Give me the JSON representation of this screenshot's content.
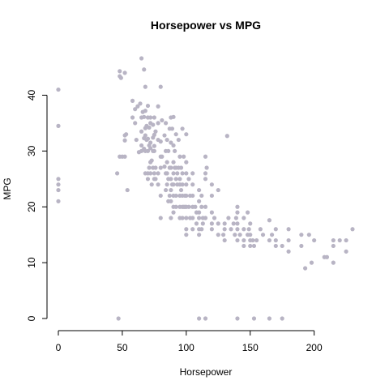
{
  "chart_data": {
    "type": "scatter",
    "title": "Horsepower vs MPG",
    "xlabel": "Horsepower",
    "ylabel": "MPG",
    "xlim": [
      0,
      230
    ],
    "ylim": [
      0,
      46.6
    ],
    "x_ticks": [
      0,
      50,
      100,
      150,
      200
    ],
    "y_ticks": [
      0,
      10,
      20,
      30,
      40
    ],
    "point_color": "#b8b4c4",
    "grid": false,
    "points": [
      [
        0,
        41
      ],
      [
        0,
        34.5
      ],
      [
        0,
        25
      ],
      [
        0,
        24
      ],
      [
        0,
        23
      ],
      [
        0,
        21
      ],
      [
        46,
        26
      ],
      [
        48,
        43.4
      ],
      [
        48,
        44.3
      ],
      [
        49,
        43.1
      ],
      [
        52,
        44
      ],
      [
        52,
        32.8
      ],
      [
        52,
        31.9
      ],
      [
        53,
        33
      ],
      [
        54,
        23
      ],
      [
        48,
        29
      ],
      [
        50,
        29
      ],
      [
        52,
        29
      ],
      [
        47,
        0
      ],
      [
        58,
        36
      ],
      [
        58,
        39
      ],
      [
        60,
        37.5
      ],
      [
        60,
        35
      ],
      [
        61,
        32
      ],
      [
        62,
        38
      ],
      [
        63,
        29.8
      ],
      [
        64,
        38.5
      ],
      [
        65,
        46.6
      ],
      [
        65,
        36
      ],
      [
        65,
        33.5
      ],
      [
        65,
        31
      ],
      [
        65,
        30
      ],
      [
        66,
        37
      ],
      [
        67,
        44.6
      ],
      [
        67,
        36.1
      ],
      [
        67,
        32.3
      ],
      [
        67,
        30.4
      ],
      [
        68,
        41.5
      ],
      [
        68,
        37.2
      ],
      [
        68,
        34.1
      ],
      [
        68,
        32.8
      ],
      [
        68,
        30
      ],
      [
        68,
        26
      ],
      [
        69,
        34.5
      ],
      [
        69,
        32
      ],
      [
        70,
        38.1
      ],
      [
        70,
        36
      ],
      [
        70,
        32.2
      ],
      [
        70,
        30
      ],
      [
        70,
        26
      ],
      [
        70,
        25
      ],
      [
        71,
        34.2
      ],
      [
        71,
        31
      ],
      [
        71,
        27
      ],
      [
        72,
        36
      ],
      [
        72,
        35
      ],
      [
        72,
        31.5
      ],
      [
        72,
        30.5
      ],
      [
        72,
        28
      ],
      [
        72,
        26
      ],
      [
        73,
        28.3
      ],
      [
        73,
        24
      ],
      [
        74,
        34.7
      ],
      [
        74,
        32.4
      ],
      [
        74,
        30
      ],
      [
        74,
        27
      ],
      [
        75,
        32.9
      ],
      [
        75,
        36
      ],
      [
        75,
        30.9
      ],
      [
        75,
        26
      ],
      [
        75,
        25
      ],
      [
        75,
        30
      ],
      [
        76,
        33.5
      ],
      [
        76,
        27
      ],
      [
        76,
        25
      ],
      [
        78,
        38
      ],
      [
        78,
        32
      ],
      [
        78,
        35
      ],
      [
        78,
        26
      ],
      [
        78,
        24
      ],
      [
        80,
        41.5
      ],
      [
        80,
        31.7
      ],
      [
        80,
        29
      ],
      [
        80,
        27
      ],
      [
        80,
        22
      ],
      [
        80,
        18
      ],
      [
        81,
        35.5
      ],
      [
        81,
        29
      ],
      [
        83,
        32.8
      ],
      [
        83,
        27.2
      ],
      [
        84,
        35
      ],
      [
        84,
        30
      ],
      [
        84,
        26
      ],
      [
        84,
        23
      ],
      [
        85,
        32
      ],
      [
        85,
        28
      ],
      [
        85,
        26
      ],
      [
        85,
        24
      ],
      [
        86,
        30
      ],
      [
        86,
        25
      ],
      [
        86,
        21
      ],
      [
        87,
        34
      ],
      [
        87,
        27
      ],
      [
        87,
        22
      ],
      [
        88,
        36
      ],
      [
        88,
        31.5
      ],
      [
        88,
        27
      ],
      [
        88,
        25
      ],
      [
        88,
        23
      ],
      [
        88,
        21
      ],
      [
        88,
        18
      ],
      [
        89,
        34
      ],
      [
        89,
        24
      ],
      [
        90,
        36.1
      ],
      [
        90,
        31
      ],
      [
        90,
        28
      ],
      [
        90,
        26
      ],
      [
        90,
        24
      ],
      [
        90,
        22
      ],
      [
        90,
        20
      ],
      [
        90,
        19
      ],
      [
        91,
        30
      ],
      [
        91,
        27
      ],
      [
        92,
        33
      ],
      [
        92,
        27
      ],
      [
        92,
        25
      ],
      [
        92,
        22
      ],
      [
        92,
        20
      ],
      [
        93,
        26
      ],
      [
        93,
        24
      ],
      [
        94,
        32
      ],
      [
        94,
        27
      ],
      [
        95,
        29
      ],
      [
        95,
        25
      ],
      [
        95,
        24
      ],
      [
        95,
        22
      ],
      [
        95,
        20
      ],
      [
        95,
        18
      ],
      [
        96,
        27
      ],
      [
        96,
        23
      ],
      [
        97,
        34
      ],
      [
        97,
        26
      ],
      [
        97,
        24
      ],
      [
        97,
        22
      ],
      [
        97,
        20
      ],
      [
        97,
        18
      ],
      [
        98,
        29
      ],
      [
        98,
        20
      ],
      [
        99,
        22
      ],
      [
        99,
        20
      ],
      [
        100,
        33
      ],
      [
        100,
        28
      ],
      [
        100,
        26
      ],
      [
        100,
        24
      ],
      [
        100,
        22
      ],
      [
        100,
        20
      ],
      [
        100,
        18
      ],
      [
        100,
        16
      ],
      [
        100,
        15
      ],
      [
        102,
        25
      ],
      [
        102,
        20
      ],
      [
        103,
        22
      ],
      [
        103,
        18
      ],
      [
        105,
        26
      ],
      [
        105,
        24
      ],
      [
        105,
        22
      ],
      [
        105,
        20
      ],
      [
        105,
        18
      ],
      [
        105,
        16
      ],
      [
        107,
        20
      ],
      [
        108,
        19
      ],
      [
        108,
        17
      ],
      [
        110,
        23
      ],
      [
        110,
        21
      ],
      [
        110,
        19
      ],
      [
        110,
        18
      ],
      [
        110,
        16
      ],
      [
        110,
        15
      ],
      [
        110,
        0
      ],
      [
        112,
        22
      ],
      [
        112,
        20
      ],
      [
        112,
        16
      ],
      [
        113,
        18
      ],
      [
        113,
        17
      ],
      [
        115,
        29
      ],
      [
        115,
        26
      ],
      [
        115,
        25
      ],
      [
        115,
        20
      ],
      [
        115,
        18
      ],
      [
        115,
        0
      ],
      [
        116,
        27
      ],
      [
        120,
        24
      ],
      [
        120,
        22
      ],
      [
        120,
        19
      ],
      [
        120,
        17
      ],
      [
        120,
        16
      ],
      [
        122,
        18
      ],
      [
        125,
        23
      ],
      [
        125,
        17
      ],
      [
        125,
        15
      ],
      [
        129,
        15
      ],
      [
        130,
        17
      ],
      [
        130,
        16
      ],
      [
        130,
        14
      ],
      [
        132,
        32.7
      ],
      [
        133,
        18
      ],
      [
        135,
        16
      ],
      [
        137,
        17
      ],
      [
        138,
        15
      ],
      [
        139,
        18
      ],
      [
        140,
        20
      ],
      [
        140,
        19
      ],
      [
        140,
        17
      ],
      [
        140,
        16
      ],
      [
        140,
        14
      ],
      [
        140,
        0
      ],
      [
        142,
        15
      ],
      [
        145,
        18
      ],
      [
        145,
        16
      ],
      [
        145,
        14
      ],
      [
        145,
        13
      ],
      [
        148,
        19
      ],
      [
        148,
        15
      ],
      [
        149,
        16
      ],
      [
        150,
        17
      ],
      [
        150,
        15
      ],
      [
        150,
        14
      ],
      [
        150,
        13
      ],
      [
        152,
        14
      ],
      [
        153,
        13
      ],
      [
        153,
        0
      ],
      [
        155,
        14
      ],
      [
        158,
        16
      ],
      [
        160,
        15
      ],
      [
        165,
        17.6
      ],
      [
        165,
        14
      ],
      [
        165,
        0
      ],
      [
        167,
        15
      ],
      [
        170,
        16
      ],
      [
        170,
        14
      ],
      [
        170,
        13
      ],
      [
        175,
        13
      ],
      [
        175,
        0
      ],
      [
        180,
        16
      ],
      [
        180,
        14
      ],
      [
        180,
        12
      ],
      [
        190,
        15
      ],
      [
        190,
        13
      ],
      [
        193,
        9
      ],
      [
        196,
        15
      ],
      [
        198,
        10
      ],
      [
        200,
        14
      ],
      [
        208,
        11
      ],
      [
        210,
        11
      ],
      [
        215,
        14
      ],
      [
        215,
        13
      ],
      [
        215,
        10
      ],
      [
        220,
        14
      ],
      [
        225,
        14
      ],
      [
        225,
        12
      ],
      [
        230,
        16
      ]
    ]
  }
}
